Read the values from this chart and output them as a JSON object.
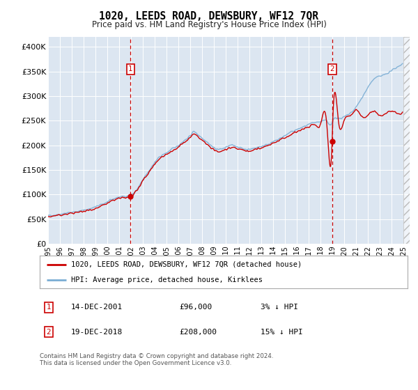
{
  "title": "1020, LEEDS ROAD, DEWSBURY, WF12 7QR",
  "subtitle": "Price paid vs. HM Land Registry's House Price Index (HPI)",
  "bg_color": "#dce6f1",
  "plot_bg": "#dce6f1",
  "hpi_color": "#7aadd4",
  "price_color": "#cc0000",
  "marker1_price": 96000,
  "marker1_year": 2001.96,
  "marker2_price": 208000,
  "marker2_year": 2018.96,
  "ylabel_ticks": [
    0,
    50000,
    100000,
    150000,
    200000,
    250000,
    300000,
    350000,
    400000
  ],
  "ylabel_labels": [
    "£0",
    "£50K",
    "£100K",
    "£150K",
    "£200K",
    "£250K",
    "£300K",
    "£350K",
    "£400K"
  ],
  "xlim": [
    1995.0,
    2025.5
  ],
  "ylim": [
    0,
    420000
  ],
  "legend_label1": "1020, LEEDS ROAD, DEWSBURY, WF12 7QR (detached house)",
  "legend_label2": "HPI: Average price, detached house, Kirklees",
  "footer": "Contains HM Land Registry data © Crown copyright and database right 2024.\nThis data is licensed under the Open Government Licence v3.0.",
  "xticks": [
    1995,
    1996,
    1997,
    1998,
    1999,
    2000,
    2001,
    2002,
    2003,
    2004,
    2005,
    2006,
    2007,
    2008,
    2009,
    2010,
    2011,
    2012,
    2013,
    2014,
    2015,
    2016,
    2017,
    2018,
    2019,
    2020,
    2021,
    2022,
    2023,
    2024,
    2025
  ],
  "hpi_keypoints": [
    [
      1995.0,
      57000
    ],
    [
      1996.0,
      60000
    ],
    [
      1997.0,
      64000
    ],
    [
      1998.0,
      68000
    ],
    [
      1999.0,
      75000
    ],
    [
      2000.0,
      85000
    ],
    [
      2001.0,
      95000
    ],
    [
      2001.96,
      99000
    ],
    [
      2002.5,
      110000
    ],
    [
      2003.0,
      130000
    ],
    [
      2003.5,
      148000
    ],
    [
      2004.0,
      165000
    ],
    [
      2004.5,
      178000
    ],
    [
      2005.0,
      185000
    ],
    [
      2005.5,
      193000
    ],
    [
      2006.0,
      200000
    ],
    [
      2006.5,
      210000
    ],
    [
      2007.0,
      220000
    ],
    [
      2007.3,
      228000
    ],
    [
      2007.5,
      225000
    ],
    [
      2008.0,
      215000
    ],
    [
      2008.5,
      205000
    ],
    [
      2009.0,
      195000
    ],
    [
      2009.5,
      192000
    ],
    [
      2010.0,
      196000
    ],
    [
      2010.5,
      200000
    ],
    [
      2011.0,
      197000
    ],
    [
      2011.5,
      193000
    ],
    [
      2012.0,
      192000
    ],
    [
      2012.5,
      195000
    ],
    [
      2013.0,
      198000
    ],
    [
      2013.5,
      202000
    ],
    [
      2014.0,
      207000
    ],
    [
      2014.5,
      213000
    ],
    [
      2015.0,
      220000
    ],
    [
      2015.5,
      227000
    ],
    [
      2016.0,
      232000
    ],
    [
      2016.5,
      237000
    ],
    [
      2017.0,
      242000
    ],
    [
      2017.5,
      246000
    ],
    [
      2018.0,
      248000
    ],
    [
      2018.5,
      250000
    ],
    [
      2018.96,
      245000
    ],
    [
      2019.0,
      248000
    ],
    [
      2019.5,
      255000
    ],
    [
      2020.0,
      258000
    ],
    [
      2020.5,
      265000
    ],
    [
      2021.0,
      278000
    ],
    [
      2021.5,
      298000
    ],
    [
      2022.0,
      318000
    ],
    [
      2022.5,
      335000
    ],
    [
      2023.0,
      340000
    ],
    [
      2023.5,
      345000
    ],
    [
      2024.0,
      352000
    ],
    [
      2024.5,
      360000
    ],
    [
      2024.9,
      365000
    ]
  ],
  "prop_keypoints": [
    [
      1995.0,
      55000
    ],
    [
      1996.0,
      58000
    ],
    [
      1997.0,
      62000
    ],
    [
      1998.0,
      66000
    ],
    [
      1999.0,
      72000
    ],
    [
      2000.0,
      82000
    ],
    [
      2001.0,
      92000
    ],
    [
      2001.96,
      96000
    ],
    [
      2002.5,
      108000
    ],
    [
      2003.0,
      128000
    ],
    [
      2003.5,
      145000
    ],
    [
      2004.0,
      162000
    ],
    [
      2004.5,
      175000
    ],
    [
      2005.0,
      182000
    ],
    [
      2005.5,
      188000
    ],
    [
      2006.0,
      196000
    ],
    [
      2006.5,
      206000
    ],
    [
      2007.0,
      216000
    ],
    [
      2007.3,
      223000
    ],
    [
      2007.5,
      220000
    ],
    [
      2008.0,
      210000
    ],
    [
      2008.5,
      200000
    ],
    [
      2009.0,
      190000
    ],
    [
      2009.5,
      188000
    ],
    [
      2010.0,
      192000
    ],
    [
      2010.5,
      196000
    ],
    [
      2011.0,
      193000
    ],
    [
      2011.5,
      190000
    ],
    [
      2012.0,
      188000
    ],
    [
      2012.5,
      192000
    ],
    [
      2013.0,
      195000
    ],
    [
      2013.5,
      199000
    ],
    [
      2014.0,
      204000
    ],
    [
      2014.5,
      210000
    ],
    [
      2015.0,
      216000
    ],
    [
      2015.5,
      222000
    ],
    [
      2016.0,
      228000
    ],
    [
      2016.5,
      233000
    ],
    [
      2017.0,
      238000
    ],
    [
      2017.5,
      242000
    ],
    [
      2018.0,
      244000
    ],
    [
      2018.5,
      246000
    ],
    [
      2018.96,
      208000
    ],
    [
      2019.0,
      240000
    ],
    [
      2019.5,
      248000
    ],
    [
      2020.0,
      252000
    ],
    [
      2020.5,
      260000
    ],
    [
      2021.0,
      272000
    ],
    [
      2021.5,
      258000
    ],
    [
      2022.0,
      262000
    ],
    [
      2022.5,
      268000
    ],
    [
      2023.0,
      260000
    ],
    [
      2023.5,
      265000
    ],
    [
      2024.0,
      270000
    ],
    [
      2024.5,
      265000
    ],
    [
      2024.9,
      268000
    ]
  ]
}
